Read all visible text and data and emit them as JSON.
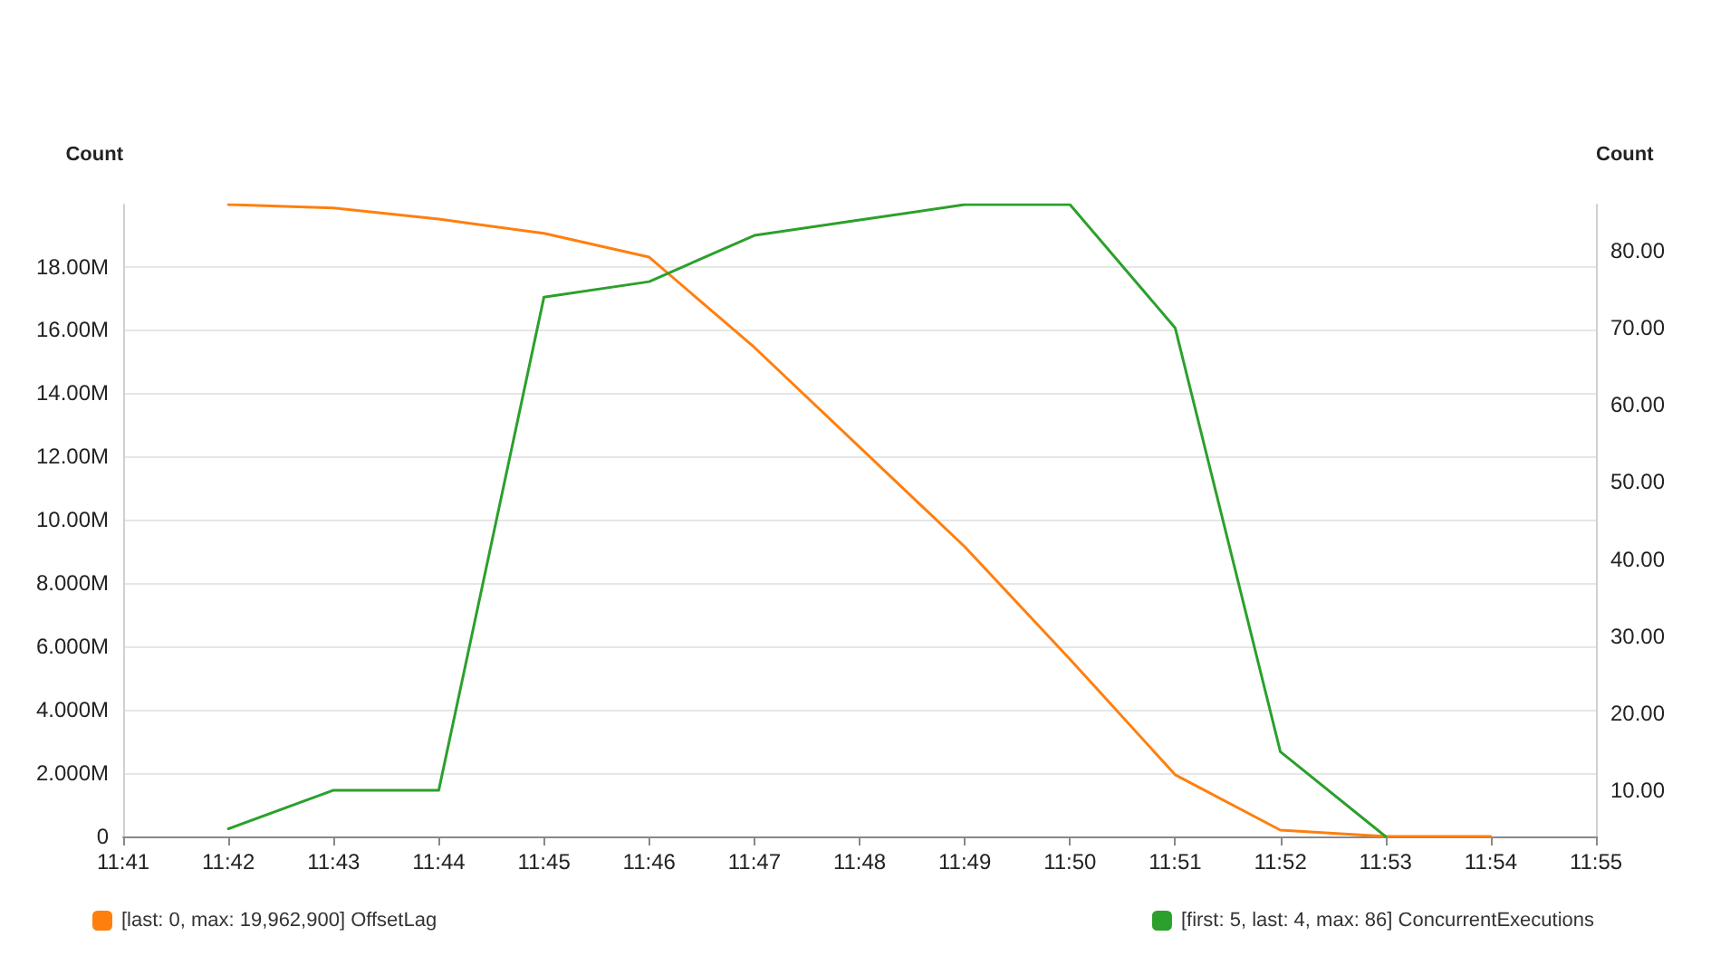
{
  "chart_data": {
    "type": "line",
    "ylabel": "Count",
    "y2label": "Count",
    "categories": [
      "11:41",
      "11:42",
      "11:43",
      "11:44",
      "11:45",
      "11:46",
      "11:47",
      "11:48",
      "11:49",
      "11:50",
      "11:51",
      "11:52",
      "11:53",
      "11:54",
      "11:55"
    ],
    "series": [
      {
        "name": "[last: 0, max: 19,962,900] OffsetLag",
        "color": "#ff7f0e",
        "values": [
          null,
          19960000,
          19850000,
          19500000,
          19050000,
          18300000,
          15450000,
          12300000,
          9150000,
          5600000,
          1950000,
          200000,
          0,
          0,
          null
        ]
      },
      {
        "name": "[first: 5, last: 4, max: 86] ConcurrentExecutions",
        "color": "#2ca02c",
        "axis": "y2",
        "values": [
          null,
          5,
          10,
          10,
          74,
          76,
          82,
          84,
          86,
          86,
          70,
          15,
          4,
          null,
          null
        ]
      }
    ],
    "ylim": [
      0,
      19960000
    ],
    "yticks": [
      0,
      {
        "value": 2000000,
        "label": "2.000M"
      },
      {
        "value": 4000000,
        "label": "4.000M"
      },
      {
        "value": 6000000,
        "label": "6.000M"
      },
      {
        "value": 8000000,
        "label": "8.000M"
      },
      {
        "value": 10000000,
        "label": "10.00M"
      },
      {
        "value": 12000000,
        "label": "12.00M"
      },
      {
        "value": 14000000,
        "label": "14.00M"
      },
      {
        "value": 16000000,
        "label": "16.00M"
      },
      {
        "value": 18000000,
        "label": "18.00M"
      }
    ],
    "y2lim": [
      4,
      86
    ],
    "y2ticks": [
      {
        "value": 10,
        "label": "10.00"
      },
      {
        "value": 20,
        "label": "20.00"
      },
      {
        "value": 30,
        "label": "30.00"
      },
      {
        "value": 40,
        "label": "40.00"
      },
      {
        "value": 50,
        "label": "50.00"
      },
      {
        "value": 60,
        "label": "60.00"
      },
      {
        "value": 70,
        "label": "70.00"
      },
      {
        "value": 80,
        "label": "80.00"
      }
    ],
    "grid": "y",
    "legend": "bottom",
    "marker": "none",
    "line_style": "solid"
  }
}
